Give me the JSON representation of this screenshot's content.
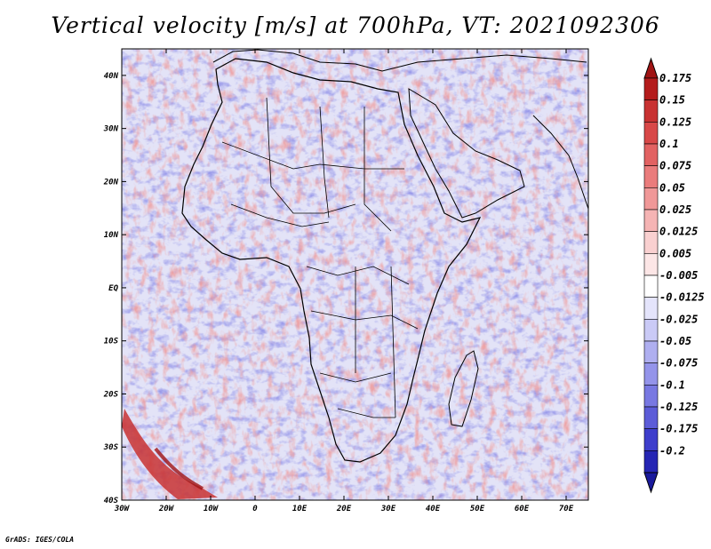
{
  "title": "Vertical velocity [m/s] at 700hPa, VT: 2021092306",
  "credit": "GrADS: IGES/COLA",
  "map": {
    "lat_labels": [
      {
        "label": "40N",
        "value": 40
      },
      {
        "label": "30N",
        "value": 30
      },
      {
        "label": "20N",
        "value": 20
      },
      {
        "label": "10N",
        "value": 10
      },
      {
        "label": "EQ",
        "value": 0
      },
      {
        "label": "10S",
        "value": -10
      },
      {
        "label": "20S",
        "value": -20
      },
      {
        "label": "30S",
        "value": -30
      },
      {
        "label": "40S",
        "value": -40
      }
    ],
    "lon_labels": [
      {
        "label": "30W",
        "value": -30
      },
      {
        "label": "20W",
        "value": -20
      },
      {
        "label": "10W",
        "value": -10
      },
      {
        "label": "0",
        "value": 0
      },
      {
        "label": "10E",
        "value": 10
      },
      {
        "label": "20E",
        "value": 20
      },
      {
        "label": "30E",
        "value": 30
      },
      {
        "label": "40E",
        "value": 40
      },
      {
        "label": "50E",
        "value": 50
      },
      {
        "label": "60E",
        "value": 60
      },
      {
        "label": "70E",
        "value": 70
      }
    ],
    "lon_range": [
      -30,
      75
    ],
    "lat_range": [
      -40,
      45
    ]
  },
  "colorbar": {
    "bins": [
      {
        "label": "0.175",
        "color": "#b41c1c"
      },
      {
        "label": "0.15",
        "color": "#c83232"
      },
      {
        "label": "0.125",
        "color": "#d84848"
      },
      {
        "label": "0.1",
        "color": "#e26262"
      },
      {
        "label": "0.075",
        "color": "#ea7c7c"
      },
      {
        "label": "0.05",
        "color": "#f09898"
      },
      {
        "label": "0.025",
        "color": "#f5b4b4"
      },
      {
        "label": "0.0125",
        "color": "#f9d0d0"
      },
      {
        "label": "0.005",
        "color": "#fce6e6"
      },
      {
        "label": "-0.005",
        "color": "#ffffff"
      },
      {
        "label": "-0.0125",
        "color": "#e4e4fb"
      },
      {
        "label": "-0.025",
        "color": "#cacaf6"
      },
      {
        "label": "-0.05",
        "color": "#afaff0"
      },
      {
        "label": "-0.075",
        "color": "#9494ea"
      },
      {
        "label": "-0.1",
        "color": "#7878e2"
      },
      {
        "label": "-0.125",
        "color": "#5c5cd8"
      },
      {
        "label": "-0.175",
        "color": "#3e3ecc"
      },
      {
        "label": "-0.2",
        "color": "#2626b4"
      }
    ],
    "top_triangle_color": "#a01414",
    "bottom_triangle_color": "#1a1a9c"
  }
}
